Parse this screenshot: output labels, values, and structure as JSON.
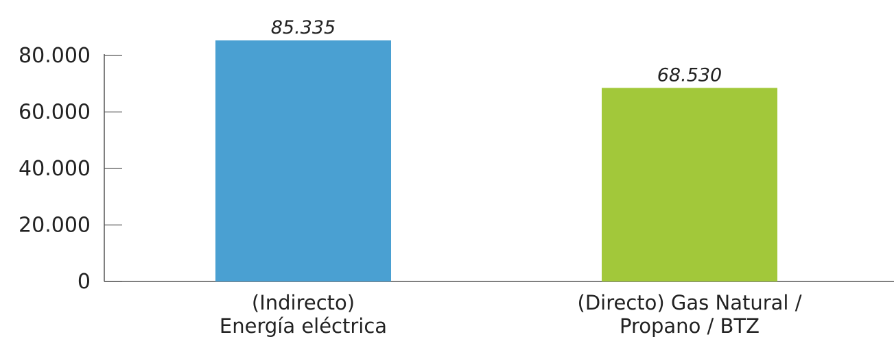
{
  "chart_data": {
    "type": "bar",
    "categories": [
      [
        "(Indirecto)",
        "Energía eléctrica"
      ],
      [
        "(Directo) Gas Natural /",
        "Propano / BTZ"
      ]
    ],
    "values": [
      85335,
      68530
    ],
    "data_labels": [
      "85.335",
      "68.530"
    ],
    "colors": [
      "#4aa0d2",
      "#a2c83a"
    ],
    "yticks": [
      0,
      20000,
      40000,
      60000,
      80000
    ],
    "ytick_labels": [
      "0",
      "20.000",
      "40.000",
      "60.000",
      "80.000"
    ],
    "ylim": [
      0,
      88000
    ],
    "title": "",
    "xlabel": "",
    "ylabel": "",
    "grid": false,
    "legend": "none"
  }
}
